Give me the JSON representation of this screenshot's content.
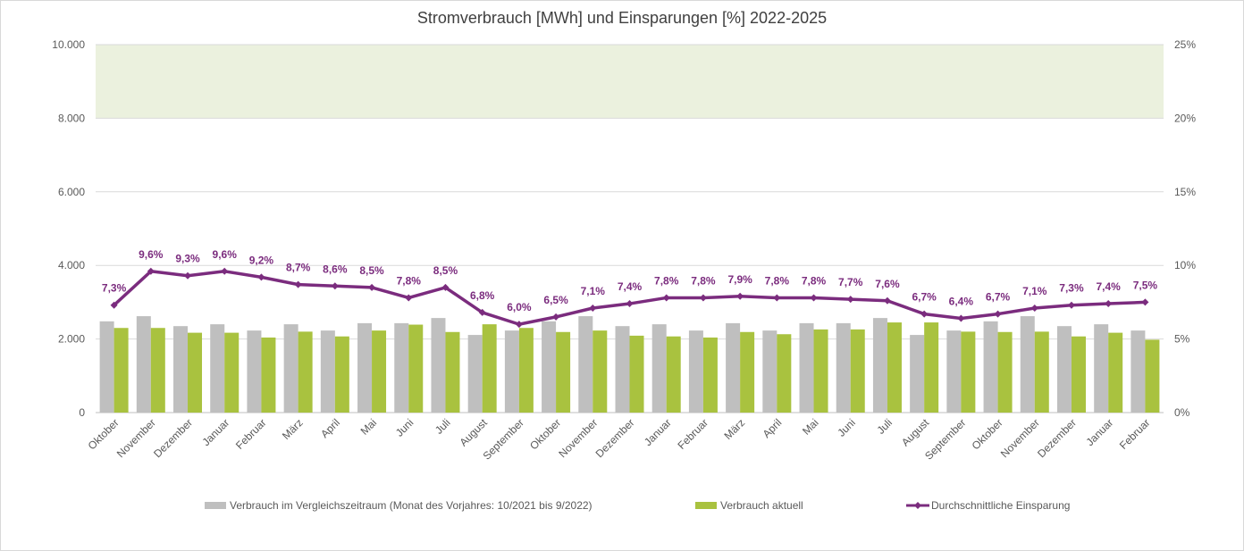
{
  "chart_data": {
    "type": "bar+line",
    "title": "Stromverbrauch [MWh] und Einsparungen [%] 2022-2025",
    "categories": [
      "Oktober",
      "November",
      "Dezember",
      "Januar",
      "Februar",
      "März",
      "April",
      "Mai",
      "Juni",
      "Juli",
      "August",
      "September",
      "Oktober",
      "November",
      "Dezember",
      "Januar",
      "Februar",
      "März",
      "April",
      "Mai",
      "Juni",
      "Juli",
      "August",
      "September",
      "Oktober",
      "November",
      "Dezember",
      "Januar",
      "Februar"
    ],
    "y_left": {
      "ticks": [
        "0",
        "2.000",
        "4.000",
        "6.000",
        "8.000",
        "10.000"
      ],
      "ylim": [
        0,
        10000
      ]
    },
    "y_right": {
      "ticks": [
        "0%",
        "5%",
        "10%",
        "15%",
        "20%",
        "25%"
      ],
      "ylim": [
        0,
        25
      ]
    },
    "target_band": {
      "from": 8000,
      "to": 10000,
      "color": "#ebf1de"
    },
    "series": [
      {
        "name": "Verbrauch im Vergleichszeitraum (Monat des Vorjahres: 10/2021 bis 9/2022)",
        "type": "bar",
        "axis": "left",
        "color": "#bfbfbf",
        "values": [
          2480,
          2620,
          2350,
          2400,
          2230,
          2400,
          2230,
          2430,
          2430,
          2570,
          2110,
          2230,
          2480,
          2620,
          2350,
          2400,
          2230,
          2430,
          2230,
          2430,
          2430,
          2570,
          2110,
          2230,
          2480,
          2620,
          2350,
          2400,
          2230
        ]
      },
      {
        "name": "Verbrauch aktuell",
        "type": "bar",
        "axis": "left",
        "color": "#a9c23f",
        "values": [
          2300,
          2300,
          2170,
          2170,
          2040,
          2200,
          2070,
          2230,
          2390,
          2190,
          2400,
          2300,
          2190,
          2230,
          2090,
          2070,
          2040,
          2190,
          2130,
          2260,
          2260,
          2450,
          2450,
          2200,
          2190,
          2200,
          2070,
          2170,
          1980
        ]
      },
      {
        "name": "Durchschnittliche Einsparung",
        "type": "line",
        "axis": "right",
        "color": "#7b2c7e",
        "values": [
          7.3,
          9.6,
          9.3,
          9.6,
          9.2,
          8.7,
          8.6,
          8.5,
          7.8,
          8.5,
          6.8,
          6.0,
          6.5,
          7.1,
          7.4,
          7.8,
          7.8,
          7.9,
          7.8,
          7.8,
          7.7,
          7.6,
          6.7,
          6.4,
          6.7,
          7.1,
          7.3,
          7.4,
          7.5
        ],
        "labels": [
          "7,3%",
          "9,6%",
          "9,3%",
          "9,6%",
          "9,2%",
          "8,7%",
          "8,6%",
          "8,5%",
          "7,8%",
          "8,5%",
          "6,8%",
          "6,0%",
          "6,5%",
          "7,1%",
          "7,4%",
          "7,8%",
          "7,8%",
          "7,9%",
          "7,8%",
          "7,8%",
          "7,7%",
          "7,6%",
          "6,7%",
          "6,4%",
          "6,7%",
          "7,1%",
          "7,3%",
          "7,4%",
          "7,5%"
        ]
      }
    ],
    "legend_position": "bottom",
    "grid": true
  }
}
